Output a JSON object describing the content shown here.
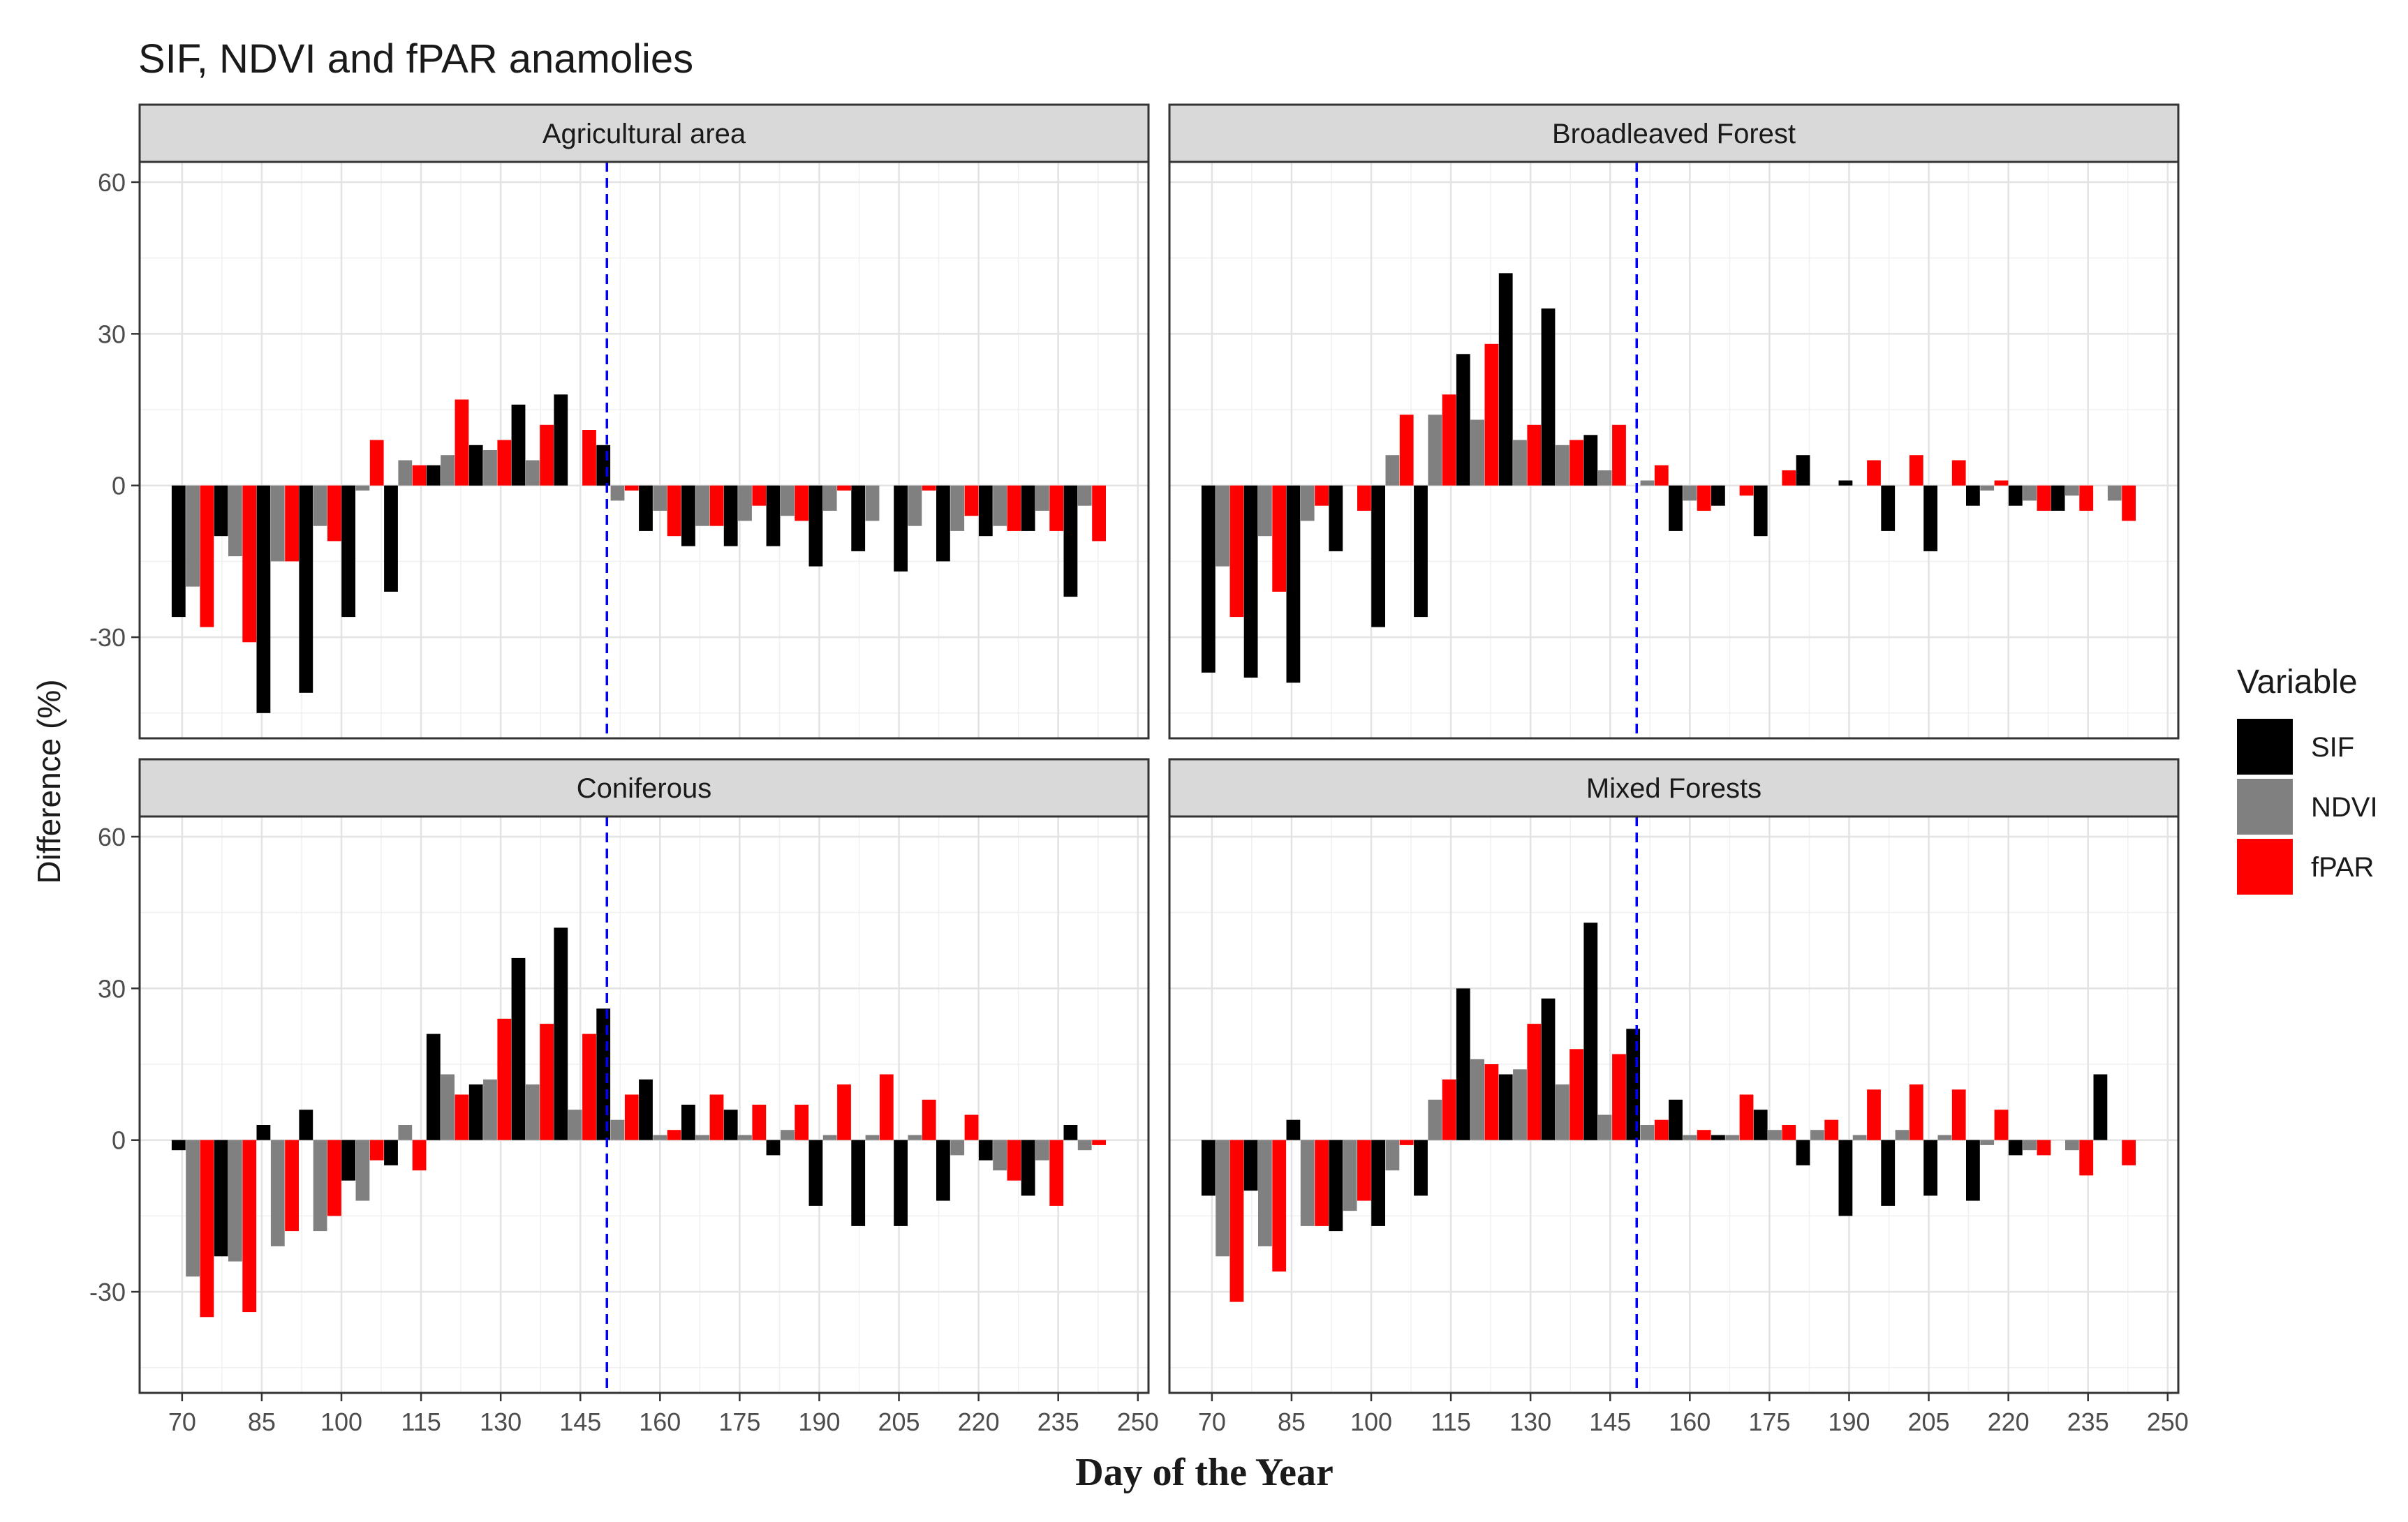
{
  "chart_data": {
    "type": "bar",
    "title": "SIF, NDVI and fPAR anamolies",
    "xlabel": "Day of the Year",
    "ylabel": "Difference (%)",
    "xlim": [
      62,
      252
    ],
    "ylim": [
      -50,
      64
    ],
    "x_ticks": [
      70,
      85,
      100,
      115,
      130,
      145,
      160,
      175,
      190,
      205,
      220,
      235,
      250
    ],
    "y_ticks": [
      -30,
      0,
      30,
      60
    ],
    "reference_line": {
      "x": 150,
      "color": "#0000ff",
      "style": "dashed"
    },
    "grid": true,
    "legend": {
      "title": "Variable",
      "position": "right",
      "entries": [
        {
          "name": "SIF",
          "color": "#000000"
        },
        {
          "name": "NDVI",
          "color": "#808080"
        },
        {
          "name": "fPAR",
          "color": "#ff0000"
        }
      ]
    },
    "days": [
      72,
      80,
      88,
      96,
      104,
      112,
      120,
      128,
      136,
      144,
      152,
      160,
      168,
      176,
      184,
      192,
      200,
      208,
      216,
      224,
      232,
      240
    ],
    "panels": [
      {
        "name": "Agricultural area",
        "series": [
          {
            "name": "SIF",
            "values": [
              -26,
              -10,
              -45,
              -41,
              -26,
              -21,
              4,
              8,
              16,
              18,
              8,
              -9,
              -12,
              -12,
              -12,
              -16,
              -13,
              -17,
              -15,
              -10,
              -9,
              -22
            ]
          },
          {
            "name": "NDVI",
            "values": [
              -20,
              -14,
              -15,
              -8,
              -1,
              5,
              6,
              7,
              5,
              0,
              -3,
              -5,
              -8,
              -7,
              -6,
              -5,
              -7,
              -8,
              -9,
              -8,
              -5,
              -4
            ]
          },
          {
            "name": "fPAR",
            "values": [
              -28,
              -31,
              -15,
              -11,
              9,
              4,
              17,
              9,
              12,
              11,
              -1,
              -10,
              -8,
              -4,
              -7,
              -1,
              0,
              -1,
              -6,
              -9,
              -9,
              -11
            ]
          }
        ]
      },
      {
        "name": "Broadleaved Forest",
        "series": [
          {
            "name": "SIF",
            "values": [
              -37,
              -38,
              -39,
              -13,
              -28,
              -26,
              26,
              42,
              35,
              10,
              0,
              -9,
              -4,
              -10,
              6,
              1,
              -9,
              -13,
              -4,
              -4,
              -5,
              0
            ]
          },
          {
            "name": "NDVI",
            "values": [
              -16,
              -10,
              -7,
              0,
              6,
              14,
              13,
              9,
              8,
              3,
              1,
              -3,
              0,
              0,
              0,
              0,
              0,
              0,
              -1,
              -3,
              -2,
              -3
            ]
          },
          {
            "name": "fPAR",
            "values": [
              -26,
              -21,
              -4,
              -5,
              14,
              18,
              28,
              12,
              9,
              12,
              4,
              -5,
              -2,
              3,
              0,
              5,
              6,
              5,
              1,
              -5,
              -5,
              -7
            ]
          }
        ]
      },
      {
        "name": "Coniferous",
        "series": [
          {
            "name": "SIF",
            "values": [
              -2,
              -23,
              3,
              6,
              -8,
              -5,
              21,
              11,
              36,
              42,
              26,
              12,
              7,
              6,
              -3,
              -13,
              -17,
              -17,
              -12,
              -4,
              -11,
              3
            ]
          },
          {
            "name": "NDVI",
            "values": [
              -27,
              -24,
              -21,
              -18,
              -12,
              3,
              13,
              12,
              11,
              6,
              4,
              1,
              1,
              1,
              2,
              1,
              1,
              1,
              -3,
              -6,
              -4,
              -2
            ]
          },
          {
            "name": "fPAR",
            "values": [
              -35,
              -34,
              -18,
              -15,
              -4,
              -6,
              9,
              24,
              23,
              21,
              9,
              2,
              9,
              7,
              7,
              11,
              13,
              8,
              5,
              -8,
              -13,
              -1
            ]
          }
        ]
      },
      {
        "name": "Mixed Forests",
        "series": [
          {
            "name": "SIF",
            "values": [
              -11,
              -10,
              4,
              -18,
              -17,
              -11,
              30,
              13,
              28,
              43,
              22,
              8,
              1,
              6,
              -5,
              -15,
              -13,
              -11,
              -12,
              -3,
              0,
              13
            ]
          },
          {
            "name": "NDVI",
            "values": [
              -23,
              -21,
              -17,
              -14,
              -6,
              8,
              16,
              14,
              11,
              5,
              3,
              1,
              1,
              2,
              2,
              1,
              2,
              1,
              -1,
              -2,
              -2,
              0
            ]
          },
          {
            "name": "fPAR",
            "values": [
              -32,
              -26,
              -17,
              -12,
              -1,
              12,
              15,
              23,
              18,
              17,
              4,
              2,
              9,
              3,
              4,
              10,
              11,
              10,
              6,
              -3,
              -7,
              -5
            ]
          }
        ]
      }
    ]
  }
}
